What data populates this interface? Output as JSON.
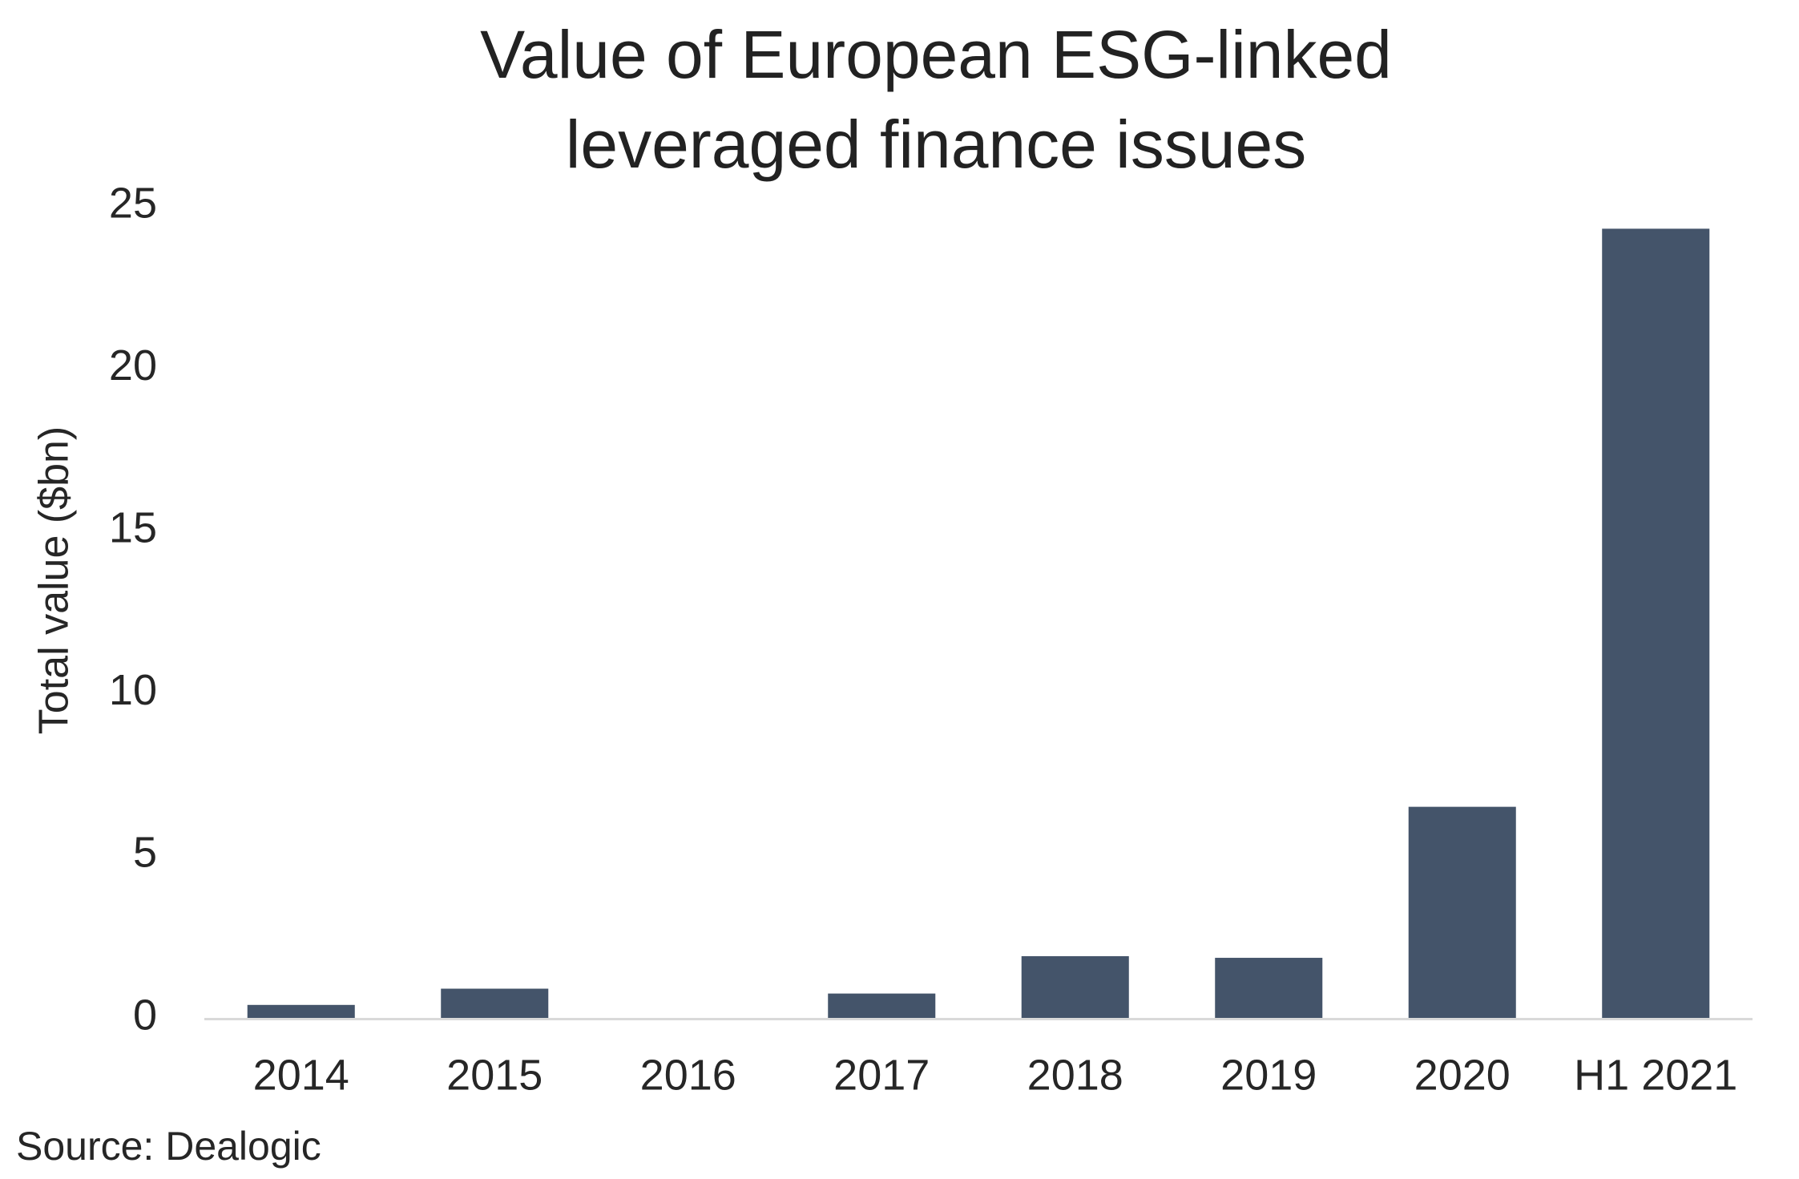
{
  "chart_data": {
    "type": "bar",
    "title_lines": [
      "Value of European ESG-linked",
      "leveraged finance issues"
    ],
    "xlabel": "",
    "ylabel": "Total value ($bn)",
    "categories": [
      "2014",
      "2015",
      "2016",
      "2017",
      "2018",
      "2019",
      "2020",
      "H1 2021"
    ],
    "values": [
      0.4,
      0.9,
      0,
      0.75,
      1.9,
      1.85,
      6.5,
      24.3
    ],
    "yticks": [
      "0",
      "5",
      "10",
      "15",
      "20",
      "25"
    ],
    "ylim": [
      0,
      25
    ],
    "grid": false,
    "legend": "none",
    "bar_color": "#44546a",
    "axis_color": "#d9d9d9"
  },
  "source": "Source: Dealogic"
}
